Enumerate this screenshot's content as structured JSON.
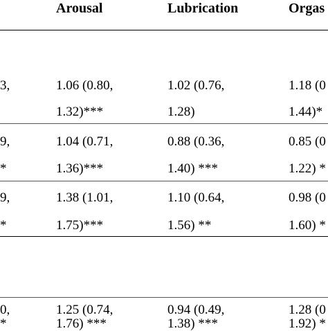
{
  "headers": {
    "arousal": "Arousal",
    "lubrication": "Lubrication",
    "orgasm": "Orgas"
  },
  "rows": [
    {
      "left_1": "3,",
      "left_2": "",
      "arousal_1": "1.06 (0.80,",
      "arousal_2": "1.32)***",
      "lubrication_1": "1.02 (0.76,",
      "lubrication_2": "1.28)",
      "orgasm_1": "1.18 (0",
      "orgasm_2": "1.44)*"
    },
    {
      "left_1": "9,",
      "left_2": "*",
      "arousal_1": "1.04 (0.71,",
      "arousal_2": "1.36)***",
      "lubrication_1": "0.88 (0.36,",
      "lubrication_2": "1.40) ***",
      "orgasm_1": "0.85 (0",
      "orgasm_2": "1.22) *"
    },
    {
      "left_1": "9,",
      "left_2": "*",
      "arousal_1": "1.38 (1.01,",
      "arousal_2": "1.75)***",
      "lubrication_1": "1.10 (0.64,",
      "lubrication_2": "1.56) **",
      "orgasm_1": "0.98 (0",
      "orgasm_2": "1.60) *"
    },
    {
      "left_1": "0,",
      "left_2": "*",
      "arousal_1": "1.25 (0.74,",
      "arousal_2": "1.76) ***",
      "lubrication_1": "0.94 (0.49,",
      "lubrication_2": "1.38) ***",
      "orgasm_1": "1.28 (0",
      "orgasm_2": "1.92) *"
    }
  ]
}
